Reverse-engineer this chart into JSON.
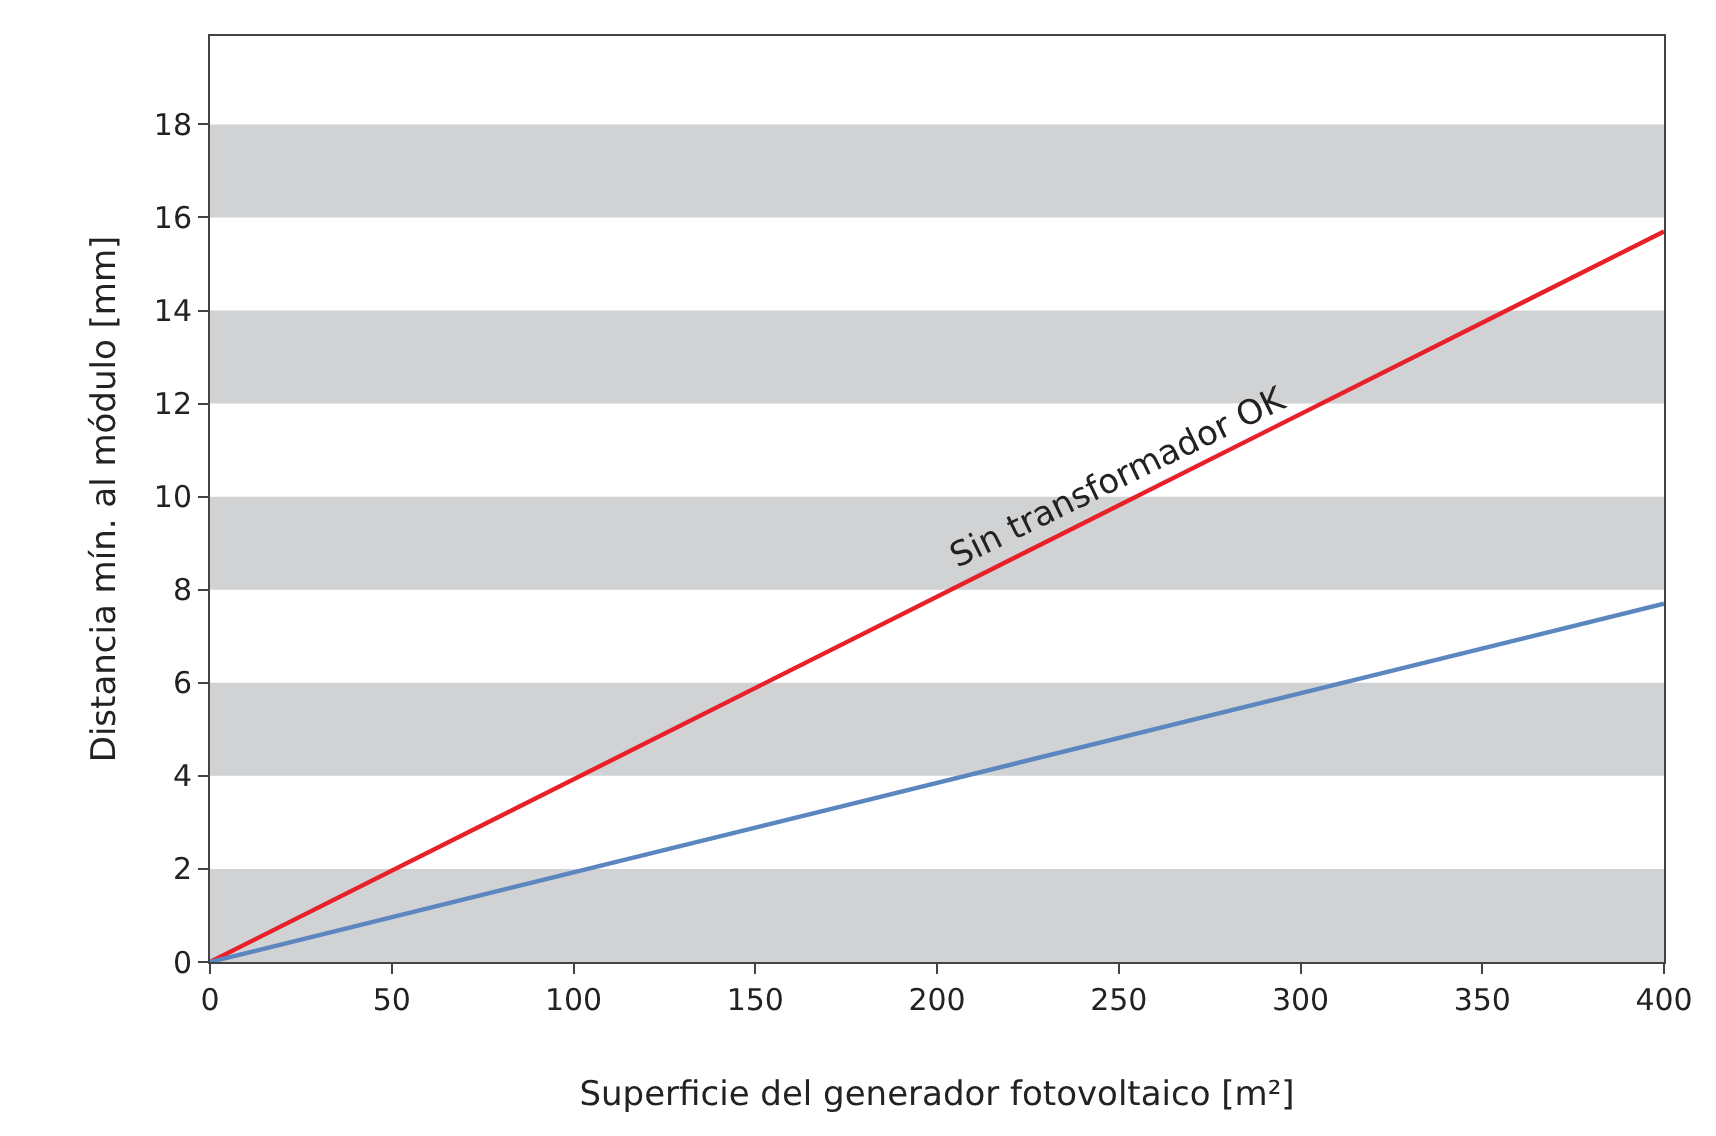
{
  "chart_data": {
    "type": "line",
    "xlabel": "Superficie del generador fotovoltaico [m²]",
    "ylabel": "Distancia mín. al módulo [mm]",
    "x": [
      0,
      400
    ],
    "series": [
      {
        "color": "#e8202a",
        "values": [
          0,
          15.7
        ]
      },
      {
        "color": "#5b86c0",
        "values": [
          0,
          7.7
        ]
      }
    ],
    "xlim": [
      0,
      400
    ],
    "xticks": [
      0,
      50,
      100,
      150,
      200,
      250,
      300,
      350,
      400
    ],
    "ylim": [
      0,
      19.9
    ],
    "yticks": [
      0,
      2,
      4,
      6,
      8,
      10,
      12,
      14,
      16,
      18
    ],
    "grid": false,
    "marker": "none",
    "line_style": "solid",
    "bands": [
      {
        "axis": "y",
        "from": 0,
        "to": 2,
        "color": "#d1d2d4"
      },
      {
        "axis": "y",
        "from": 4,
        "to": 6,
        "color": "#d1d2d4"
      },
      {
        "axis": "y",
        "from": 8,
        "to": 10,
        "color": "#d1d2d4"
      },
      {
        "axis": "y",
        "from": 12,
        "to": 14,
        "color": "#d1d2d4"
      },
      {
        "axis": "y",
        "from": 16,
        "to": 18,
        "color": "#d1d2d4"
      }
    ],
    "annotations": [
      {
        "text": "Sin transformador OK",
        "x": 250,
        "y": 9.81
      }
    ]
  }
}
